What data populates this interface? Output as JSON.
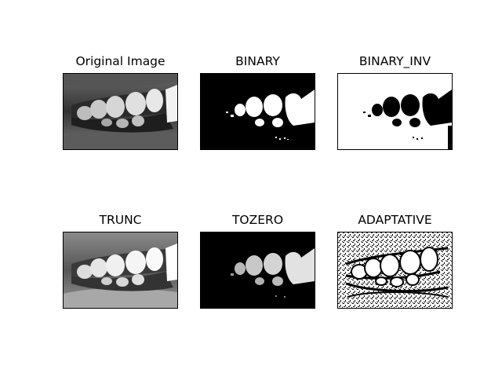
{
  "panels": [
    {
      "id": "original",
      "title": "Original Image",
      "image": "grayscale photo of teeth and lips"
    },
    {
      "id": "binary",
      "title": "BINARY",
      "image": "binary thresholded teeth"
    },
    {
      "id": "binary_inv",
      "title": "BINARY_INV",
      "image": "inverse binary thresholded teeth"
    },
    {
      "id": "trunc",
      "title": "TRUNC",
      "image": "truncated threshold teeth"
    },
    {
      "id": "tozero",
      "title": "TOZERO",
      "image": "to-zero threshold teeth"
    },
    {
      "id": "adaptative",
      "title": "ADAPTATIVE",
      "image": "adaptive threshold teeth"
    }
  ]
}
